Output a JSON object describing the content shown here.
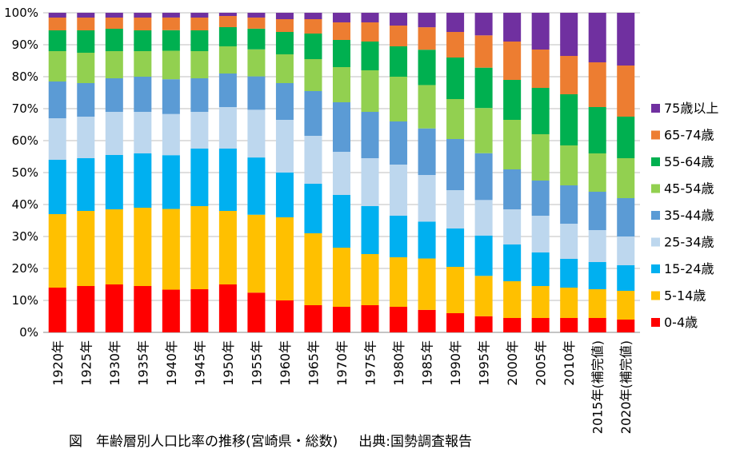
{
  "caption": {
    "title": "図　年齢層別人口比率の推移(宮崎県・総数)",
    "source": "出典:国勢調査報告"
  },
  "chart_data": {
    "type": "bar",
    "stacked": true,
    "percent": true,
    "title": "",
    "xlabel": "",
    "ylabel": "",
    "ylim": [
      0,
      100
    ],
    "yticks": [
      "0%",
      "10%",
      "20%",
      "30%",
      "40%",
      "50%",
      "60%",
      "70%",
      "80%",
      "90%",
      "100%"
    ],
    "grid": true,
    "legend_position": "right",
    "categories": [
      "1920年",
      "1925年",
      "1930年",
      "1935年",
      "1940年",
      "1945年",
      "1950年",
      "1955年",
      "1960年",
      "1965年",
      "1970年",
      "1975年",
      "1980年",
      "1985年",
      "1990年",
      "1995年",
      "2000年",
      "2005年",
      "2010年",
      "2015年(補完値)",
      "2020年(補完値)"
    ],
    "series": [
      {
        "name": "0-4歳",
        "color": "#ff0000",
        "values": [
          14,
          14.5,
          15,
          14.5,
          13.5,
          13.5,
          15,
          12.5,
          10,
          8.5,
          8,
          8.5,
          8,
          7,
          6,
          5,
          4.5,
          4.5,
          4.5,
          4.5,
          4
        ]
      },
      {
        "name": "5-14歳",
        "color": "#ffc000",
        "values": [
          23,
          23.5,
          23.5,
          24.5,
          25.5,
          26,
          23,
          24.5,
          26,
          22.5,
          18.5,
          16,
          15.5,
          16,
          14.5,
          12.5,
          11.5,
          10,
          9.5,
          9,
          9
        ]
      },
      {
        "name": "15-24歳",
        "color": "#00b0f0",
        "values": [
          17,
          16.5,
          17,
          17,
          17,
          18,
          19.5,
          18,
          14,
          15.5,
          16.5,
          15,
          13,
          11.5,
          12,
          12.5,
          11.5,
          10.5,
          9,
          8.5,
          8
        ]
      },
      {
        "name": "25-34歳",
        "color": "#bdd7ee",
        "values": [
          13,
          13,
          13.5,
          13,
          13,
          11.5,
          13,
          15,
          16.5,
          15,
          13.5,
          15,
          16,
          14.5,
          12,
          11,
          11,
          11.5,
          11,
          10,
          9
        ]
      },
      {
        "name": "35-44歳",
        "color": "#5b9bd5",
        "values": [
          11.5,
          10.5,
          10.5,
          11,
          11,
          10.5,
          10.5,
          10.5,
          11.5,
          14,
          15.5,
          14.5,
          13.5,
          14.5,
          16,
          14.5,
          12.5,
          11,
          12,
          12,
          12
        ]
      },
      {
        "name": "45-54歳",
        "color": "#92d050",
        "values": [
          9.5,
          9.5,
          8.5,
          8,
          9,
          8.5,
          8.5,
          8.5,
          9,
          10,
          11,
          13,
          14,
          13.5,
          12.5,
          14,
          15.5,
          14.5,
          12.5,
          12,
          12.5
        ]
      },
      {
        "name": "55-64歳",
        "color": "#00b050",
        "values": [
          6.5,
          7,
          7,
          6.5,
          6.5,
          6.5,
          6,
          6.5,
          7,
          8,
          8.5,
          9,
          9.5,
          11,
          13,
          12.5,
          12.5,
          14.5,
          16,
          14.5,
          13
        ]
      },
      {
        "name": "65-74歳",
        "color": "#ed7d31",
        "values": [
          4,
          4,
          3.5,
          4,
          4,
          4,
          3.5,
          3.5,
          4,
          4.5,
          5.5,
          6,
          6.5,
          7,
          8,
          10,
          12,
          12,
          12,
          14,
          16
        ]
      },
      {
        "name": "75歳以上",
        "color": "#7030a0",
        "values": [
          1.5,
          1.5,
          1.5,
          1.5,
          1.5,
          1.5,
          1,
          1.5,
          2,
          2,
          3,
          3,
          4,
          4.5,
          6,
          7,
          9,
          11.5,
          13.5,
          15.5,
          16.5
        ]
      }
    ]
  }
}
